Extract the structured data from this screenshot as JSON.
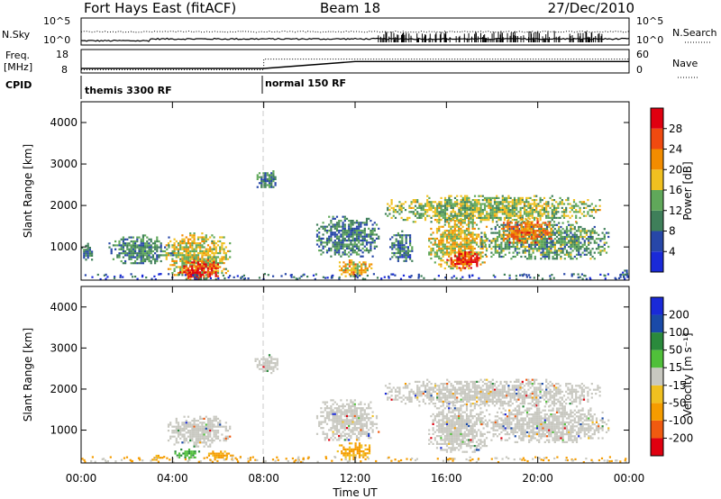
{
  "header": {
    "station": "Fort Hays East (fitACF)",
    "beam": "Beam 18",
    "date": "27/Dec/2010"
  },
  "colors": {
    "power_scale": [
      "#1a2ad8",
      "#2747a8",
      "#3f7f5a",
      "#60a85a",
      "#f0c020",
      "#f28c00",
      "#f04a10",
      "#e00010"
    ],
    "velocity_scale": [
      "#e00010",
      "#f05a10",
      "#f59c00",
      "#f0c020",
      "#c8c8c0",
      "#50c03a",
      "#2a8a3c",
      "#1a4aa8",
      "#1a2ad8"
    ],
    "ground_scatter": "#c0c0c0"
  },
  "chart_data": [
    {
      "type": "line",
      "name": "noise-panel",
      "left_label": {
        "top": "N.Sky",
        "tick_hi": "10^5",
        "tick_lo": "10^0"
      },
      "right_label": {
        "top": "N.Search",
        "tick_hi": "10^5",
        "tick_lo": "10^0"
      },
      "series": [
        {
          "label": "N.Sky",
          "style": "solid"
        },
        {
          "label": "N.Search",
          "style": "dotted"
        }
      ]
    },
    {
      "type": "line",
      "name": "freq-nave-panel",
      "left_label": {
        "top": "Freq.",
        "unit": "[MHz]",
        "tick_hi": "18",
        "tick_lo": "8"
      },
      "right_label": {
        "top": "Nave",
        "tick_hi": "60",
        "tick_lo": "0"
      },
      "freq_steps": [
        {
          "t": 0,
          "v": 9.8
        },
        {
          "t": 8,
          "v": 15.7
        }
      ],
      "nave_steps": [
        {
          "t": 0,
          "v": 15
        },
        {
          "t": 8,
          "v": 15
        },
        {
          "t": 12,
          "v": 38
        },
        {
          "t": 24,
          "v": 38
        }
      ]
    },
    {
      "type": "text",
      "name": "cpid-panel",
      "label": "CPID",
      "modes": [
        {
          "start": 0,
          "label": "themis 3300 RF"
        },
        {
          "start": 8,
          "label": "normal 150 RF"
        }
      ]
    },
    {
      "type": "heatmap",
      "name": "power-panel",
      "ylabel": "Slant Range [km]",
      "ylim": [
        200,
        4500
      ],
      "yticks": [
        "1000",
        "2000",
        "3000",
        "4000"
      ],
      "ytick_values": [
        1000,
        2000,
        3000,
        4000
      ],
      "colorbar": {
        "label": "Power [dB]",
        "ticks": [
          "28",
          "24",
          "20",
          "16",
          "12",
          "8",
          "4"
        ],
        "range": [
          0,
          30
        ]
      },
      "scatter_regions": [
        {
          "t": [
            0.0,
            0.5
          ],
          "r": [
            700,
            1100
          ],
          "level": 8
        },
        {
          "t": [
            3.7,
            6.5
          ],
          "r": [
            250,
            1350
          ],
          "level": 16
        },
        {
          "t": [
            4.3,
            6.0
          ],
          "r": [
            250,
            700
          ],
          "level": 26
        },
        {
          "t": [
            4.6,
            5.4
          ],
          "r": [
            250,
            450
          ],
          "level": 29
        },
        {
          "t": [
            1.2,
            4.0
          ],
          "r": [
            600,
            1300
          ],
          "level": 10
        },
        {
          "t": [
            7.6,
            8.6
          ],
          "r": [
            2400,
            2850
          ],
          "level": 9
        },
        {
          "t": [
            10.3,
            13.0
          ],
          "r": [
            750,
            1750
          ],
          "level": 9
        },
        {
          "t": [
            11.2,
            12.7
          ],
          "r": [
            300,
            700
          ],
          "level": 18
        },
        {
          "t": [
            13.5,
            14.5
          ],
          "r": [
            600,
            1400
          ],
          "level": 8
        },
        {
          "t": [
            13.3,
            22.7
          ],
          "r": [
            1600,
            2250
          ],
          "level": 14
        },
        {
          "t": [
            15.2,
            17.8
          ],
          "r": [
            450,
            1700
          ],
          "level": 17
        },
        {
          "t": [
            16.0,
            17.5
          ],
          "r": [
            500,
            900
          ],
          "level": 26
        },
        {
          "t": [
            17.5,
            23.1
          ],
          "r": [
            700,
            1600
          ],
          "level": 11
        },
        {
          "t": [
            18.3,
            20.6
          ],
          "r": [
            1100,
            1700
          ],
          "level": 22
        },
        {
          "t": [
            23.6,
            23.9
          ],
          "r": [
            300,
            500
          ],
          "level": 8
        }
      ]
    },
    {
      "type": "heatmap",
      "name": "velocity-panel",
      "ylabel": "Slant Range [km]",
      "xlabel": "Time UT",
      "ylim": [
        200,
        4500
      ],
      "yticks": [
        "1000",
        "2000",
        "3000",
        "4000"
      ],
      "ytick_values": [
        1000,
        2000,
        3000,
        4000
      ],
      "xticks": [
        "00:00",
        "04:00",
        "08:00",
        "12:00",
        "16:00",
        "20:00",
        "00:00"
      ],
      "xtick_values": [
        0,
        4,
        8,
        12,
        16,
        20,
        24
      ],
      "colorbar": {
        "label": "Velocity [m s⁻¹]",
        "ticks": [
          "200",
          "100",
          "50",
          "15",
          "-15",
          "-50",
          "-100",
          "-200"
        ]
      },
      "scatter_regions": [
        {
          "t": [
            3.7,
            6.5
          ],
          "r": [
            600,
            1350
          ],
          "v": 0
        },
        {
          "t": [
            4.0,
            5.2
          ],
          "r": [
            300,
            550
          ],
          "v": 60
        },
        {
          "t": [
            5.3,
            6.7
          ],
          "r": [
            300,
            500
          ],
          "v": -60
        },
        {
          "t": [
            3.0,
            3.6
          ],
          "r": [
            250,
            400
          ],
          "v": -60
        },
        {
          "t": [
            7.6,
            8.6
          ],
          "r": [
            2400,
            2850
          ],
          "v": 0
        },
        {
          "t": [
            10.3,
            13.0
          ],
          "r": [
            750,
            1750
          ],
          "v": 0
        },
        {
          "t": [
            11.2,
            12.7
          ],
          "r": [
            300,
            700
          ],
          "v": -60
        },
        {
          "t": [
            13.3,
            22.7
          ],
          "r": [
            1600,
            2250
          ],
          "v": 0
        },
        {
          "t": [
            15.2,
            17.8
          ],
          "r": [
            450,
            1700
          ],
          "v": 0
        },
        {
          "t": [
            17.5,
            23.1
          ],
          "r": [
            700,
            1600
          ],
          "v": 0
        }
      ]
    }
  ]
}
